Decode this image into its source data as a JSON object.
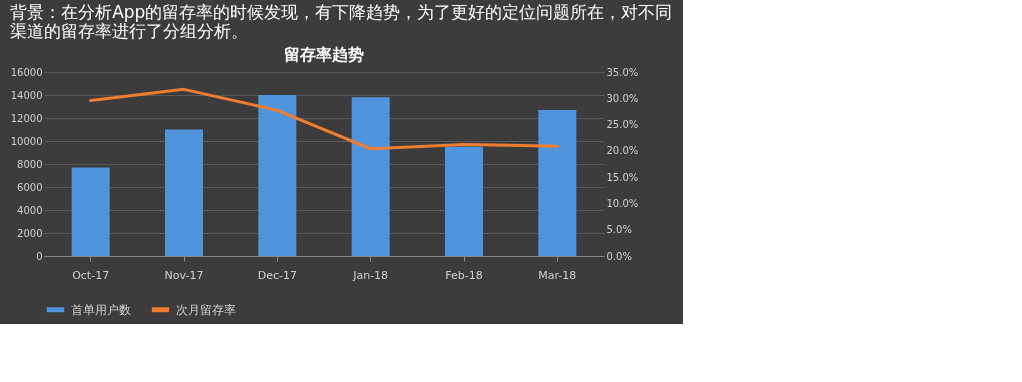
{
  "chart_data": {
    "type": "bar",
    "annotations": [
      "背景：在分析App的留存率的时候发现，有下降趋势，为了更好的定位问题所在，对不同渠道的留存率进行了分组分析。"
    ],
    "title": "留存率趋势",
    "categories": [
      "Oct-17",
      "Nov-17",
      "Dec-17",
      "Jan-18",
      "Feb-18",
      "Mar-18"
    ],
    "series": [
      {
        "name": "首单用户数",
        "color": "#4f94dc",
        "values": [
          7700,
          11000,
          14000,
          13800,
          9500,
          12700
        ]
      },
      {
        "name": "次月留存率",
        "type": "line",
        "axis": "y2",
        "color": "#ed7d31",
        "values": [
          29.6,
          31.7,
          27.7,
          20.4,
          21.2,
          20.9
        ]
      }
    ],
    "ylim": [
      0,
      16000
    ],
    "yticks": [
      0,
      2000,
      4000,
      6000,
      8000,
      10000,
      12000,
      14000,
      16000
    ],
    "y2lim": [
      0,
      35
    ],
    "y2ticks": [
      {
        "value": 0,
        "label": "0.0%"
      },
      {
        "value": 5,
        "label": "5.0%"
      },
      {
        "value": 10,
        "label": "10.0%"
      },
      {
        "value": 15,
        "label": "15.0%"
      },
      {
        "value": 20,
        "label": "20.0%"
      },
      {
        "value": 25,
        "label": "25.0%"
      },
      {
        "value": 30,
        "label": "30.0%"
      },
      {
        "value": 35,
        "label": "35.0%"
      }
    ],
    "grid": "y",
    "legend": "bottom"
  }
}
